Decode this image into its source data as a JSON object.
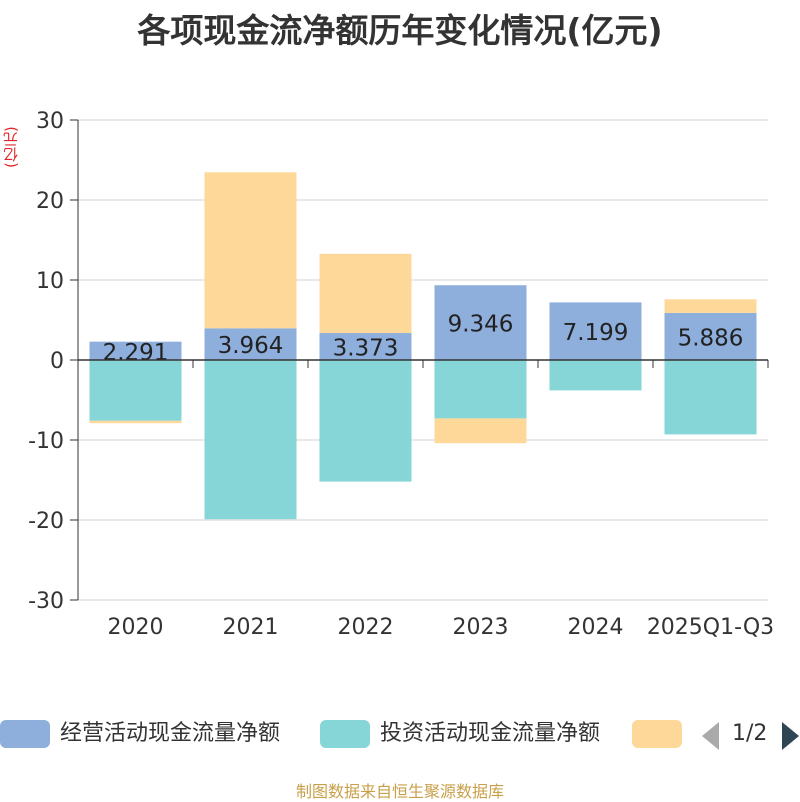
{
  "chart_data": {
    "type": "bar",
    "stacked": true,
    "title": "各项现金流净额历年变化情况(亿元)",
    "ylabel": "(亿元)",
    "ylim": [
      -30,
      30
    ],
    "yticks": [
      30,
      20,
      10,
      0,
      -10,
      -20,
      -30
    ],
    "categories": [
      "2020",
      "2021",
      "2022",
      "2023",
      "2024",
      "2025Q1-Q3"
    ],
    "series": [
      {
        "name": "经营活动现金流量净额",
        "color": "#8eaedc",
        "values": [
          2.291,
          3.964,
          3.373,
          9.346,
          7.199,
          5.886
        ],
        "labels": [
          "2.291",
          "3.964",
          "3.373",
          "9.346",
          "7.199",
          "5.886"
        ]
      },
      {
        "name": "投资活动现金流量净额",
        "color": "#86d6d8",
        "values": [
          -7.6,
          -19.9,
          -15.2,
          -7.3,
          -3.8,
          -9.3
        ]
      },
      {
        "name": "",
        "color": "#fdd898",
        "values": [
          -0.3,
          19.5,
          9.9,
          -3.1,
          0,
          1.7
        ]
      }
    ]
  },
  "legend": {
    "items": [
      {
        "label": "经营活动现金流量净额"
      },
      {
        "label": "投资活动现金流量净额"
      },
      {
        "label": ""
      }
    ],
    "pager": "1/2"
  },
  "source": "制图数据来自恒生聚源数据库"
}
